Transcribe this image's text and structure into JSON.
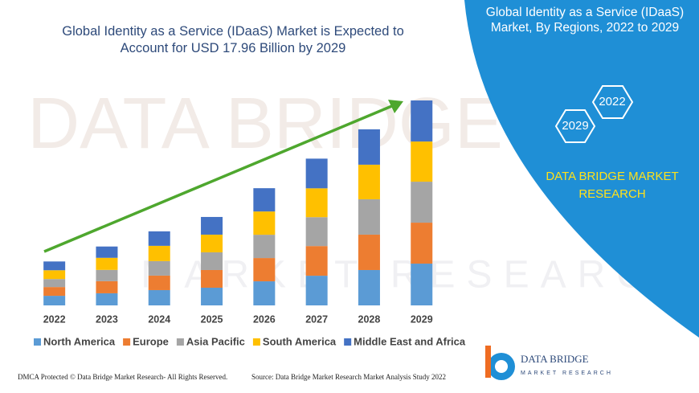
{
  "chart_data": {
    "type": "bar",
    "stacked": true,
    "title": "Global Identity as a Service (IDaaS) Market is Expected to Account for USD 17.96 Billion by 2029",
    "categories": [
      "2022",
      "2023",
      "2024",
      "2025",
      "2026",
      "2027",
      "2028",
      "2029"
    ],
    "series": [
      {
        "name": "North America",
        "color": "#5b9bd5",
        "values": [
          0.84,
          1.06,
          1.34,
          1.55,
          2.11,
          2.6,
          3.1,
          3.66
        ]
      },
      {
        "name": "Europe",
        "color": "#ed7d31",
        "values": [
          0.77,
          1.06,
          1.27,
          1.55,
          2.04,
          2.6,
          3.1,
          3.59
        ]
      },
      {
        "name": "Asia Pacific",
        "color": "#a5a5a5",
        "values": [
          0.7,
          0.99,
          1.27,
          1.55,
          2.04,
          2.53,
          3.1,
          3.59
        ]
      },
      {
        "name": "South America",
        "color": "#ffc000",
        "values": [
          0.77,
          1.06,
          1.34,
          1.55,
          2.04,
          2.53,
          3.03,
          3.52
        ]
      },
      {
        "name": "Middle East and Africa",
        "color": "#4472c4",
        "values": [
          0.77,
          0.99,
          1.27,
          1.55,
          2.04,
          2.6,
          3.1,
          3.6
        ]
      }
    ],
    "legend": "bottom",
    "grid": false
  },
  "panel": {
    "title": "Global Identity as a Service (IDaaS) Market, By Regions, 2022 to 2029",
    "hexagons": [
      "2022",
      "2029"
    ],
    "brand": "DATA BRIDGE MARKET RESEARCH",
    "logo_name": "DATA BRIDGE",
    "logo_tagline": "MARKET RESEARCH"
  },
  "footer": {
    "left": "DMCA Protected © Data Bridge Market Research- All Rights Reserved.",
    "right": "Source: Data Bridge Market Research Market Analysis Study 2022"
  },
  "watermark": {
    "line1": "DATA BRIDGE",
    "line2": "MARKET RESEARCH"
  }
}
